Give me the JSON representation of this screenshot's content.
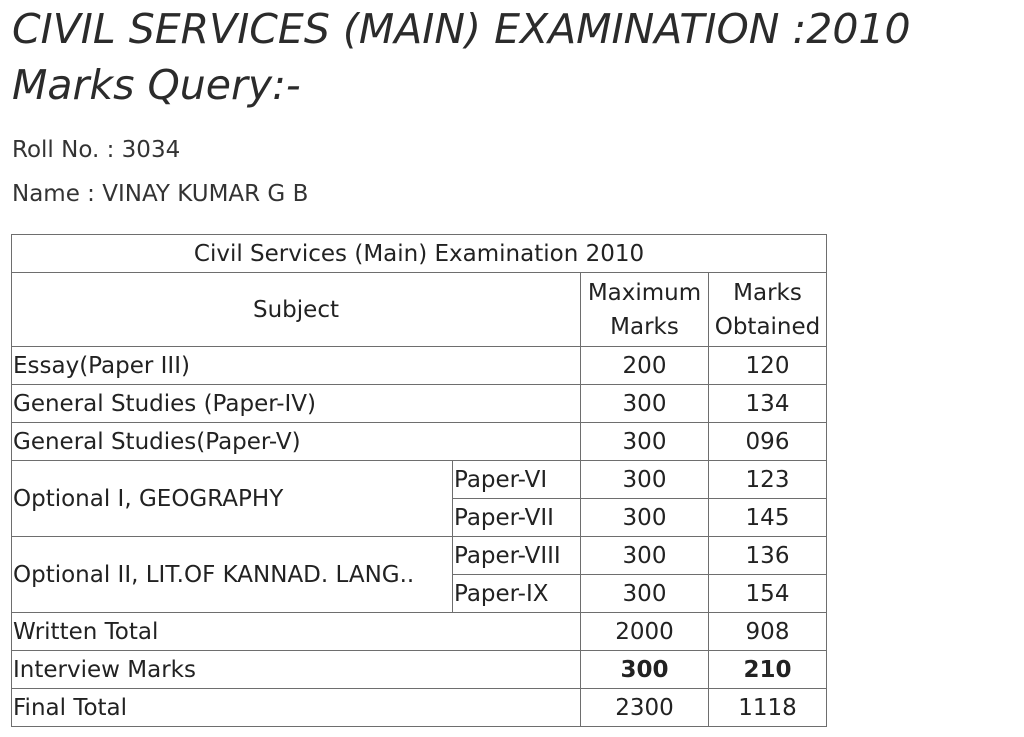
{
  "heading": {
    "line1": "CIVIL SERVICES (MAIN) EXAMINATION :2010",
    "line2": "Marks Query:-"
  },
  "candidate": {
    "roll_label": "Roll No.",
    "roll_value": "3034",
    "name_label": "Name",
    "name_value": "VINAY KUMAR G B"
  },
  "table": {
    "caption": "Civil Services (Main) Examination 2010",
    "headers": {
      "subject": "Subject",
      "maximum_marks": "Maximum Marks",
      "marks_obtained": "Marks Obtained"
    },
    "rows": [
      {
        "subject": "Essay(Paper III)",
        "max": "200",
        "obtained": "120"
      },
      {
        "subject": "General Studies (Paper-IV)",
        "max": "300",
        "obtained": "134"
      },
      {
        "subject": "General Studies(Paper-V)",
        "max": "300",
        "obtained": "096"
      }
    ],
    "optional1": {
      "subject": "Optional I, GEOGRAPHY",
      "papers": [
        {
          "paper": "Paper-VI",
          "max": "300",
          "obtained": "123"
        },
        {
          "paper": "Paper-VII",
          "max": "300",
          "obtained": "145"
        }
      ]
    },
    "optional2": {
      "subject": "Optional II, LIT.OF KANNAD. LANG..",
      "papers": [
        {
          "paper": "Paper-VIII",
          "max": "300",
          "obtained": "136"
        },
        {
          "paper": "Paper-IX",
          "max": "300",
          "obtained": "154"
        }
      ]
    },
    "written_total": {
      "label": "Written Total",
      "max": "2000",
      "obtained": "908"
    },
    "interview": {
      "label": "Interview Marks",
      "max": "300",
      "obtained": "210"
    },
    "final_total": {
      "label": "Final Total",
      "max": "2300",
      "obtained": "1118"
    }
  }
}
